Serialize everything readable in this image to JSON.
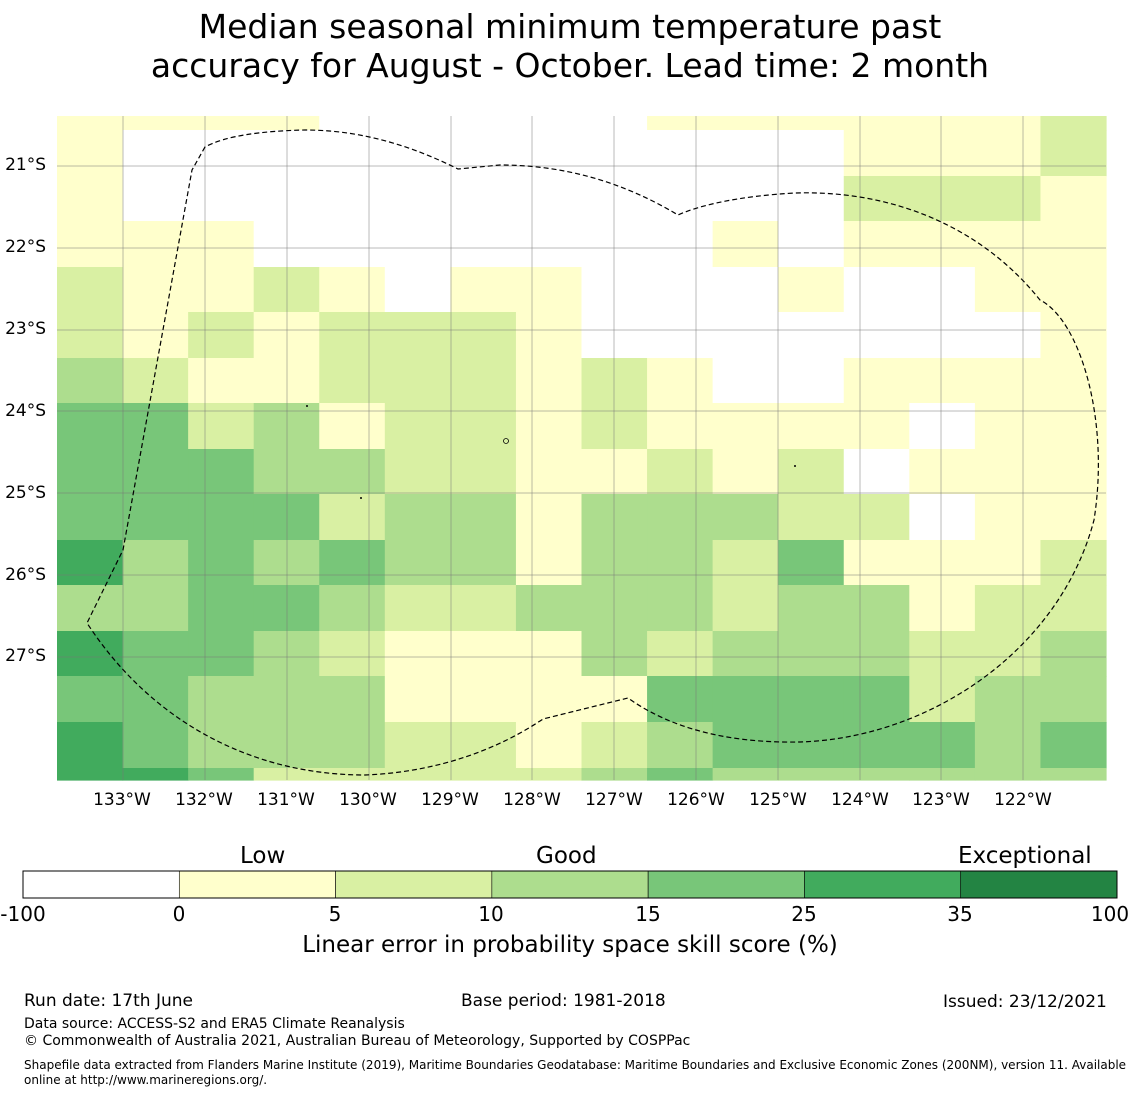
{
  "title_line1": "Median seasonal minimum temperature past",
  "title_line2": "accuracy for August - October. Lead time: 2 month",
  "map": {
    "lat_labels": [
      "21°S",
      "22°S",
      "23°S",
      "24°S",
      "25°S",
      "26°S",
      "27°S"
    ],
    "lon_labels": [
      "133°W",
      "132°W",
      "131°W",
      "130°W",
      "129°W",
      "128°W",
      "127°W",
      "126°W",
      "125°W",
      "124°W",
      "123°W",
      "122°W"
    ],
    "grid_colors_by_class": [
      "#ffffff",
      "#ffffcc",
      "#d9f0a3",
      "#addd8e",
      "#78c679",
      "#41ab5d",
      "#238443"
    ],
    "skill_class_grid": [
      [
        1,
        1,
        1,
        1,
        0,
        0,
        0,
        0,
        0,
        1,
        1,
        1,
        1,
        1,
        1,
        2
      ],
      [
        1,
        0,
        0,
        0,
        0,
        0,
        0,
        0,
        0,
        0,
        0,
        0,
        1,
        1,
        1,
        2
      ],
      [
        1,
        0,
        0,
        0,
        0,
        0,
        0,
        0,
        0,
        0,
        0,
        0,
        2,
        2,
        2,
        1
      ],
      [
        1,
        1,
        1,
        0,
        0,
        0,
        0,
        0,
        0,
        0,
        1,
        0,
        1,
        1,
        1,
        1
      ],
      [
        2,
        1,
        1,
        2,
        1,
        0,
        1,
        1,
        0,
        0,
        0,
        1,
        0,
        0,
        1,
        1
      ],
      [
        2,
        1,
        2,
        1,
        2,
        2,
        2,
        1,
        0,
        0,
        0,
        0,
        0,
        0,
        0,
        1
      ],
      [
        3,
        2,
        1,
        1,
        2,
        2,
        2,
        1,
        2,
        1,
        0,
        0,
        1,
        1,
        1,
        1
      ],
      [
        4,
        4,
        2,
        3,
        1,
        2,
        2,
        1,
        2,
        1,
        1,
        1,
        1,
        0,
        1,
        1
      ],
      [
        4,
        4,
        4,
        3,
        3,
        2,
        2,
        1,
        1,
        2,
        1,
        2,
        0,
        1,
        1,
        1
      ],
      [
        4,
        4,
        4,
        4,
        2,
        3,
        3,
        1,
        3,
        3,
        3,
        2,
        2,
        0,
        1,
        1
      ],
      [
        5,
        3,
        4,
        3,
        4,
        3,
        3,
        1,
        3,
        3,
        2,
        4,
        1,
        1,
        1,
        2
      ],
      [
        3,
        3,
        4,
        4,
        3,
        2,
        2,
        3,
        3,
        3,
        2,
        3,
        3,
        1,
        2,
        2
      ],
      [
        5,
        4,
        4,
        3,
        2,
        1,
        1,
        1,
        3,
        2,
        3,
        3,
        3,
        2,
        2,
        3
      ],
      [
        4,
        4,
        3,
        3,
        3,
        1,
        1,
        1,
        1,
        4,
        4,
        4,
        4,
        2,
        3,
        3
      ],
      [
        5,
        4,
        3,
        3,
        3,
        2,
        2,
        1,
        2,
        3,
        4,
        4,
        4,
        4,
        3,
        4
      ],
      [
        5,
        5,
        4,
        2,
        2,
        2,
        2,
        2,
        3,
        4,
        3,
        3,
        3,
        3,
        3,
        3
      ]
    ],
    "dot_marker_count": 4
  },
  "colorbar": {
    "categories": [
      "Low",
      "Good",
      "Exceptional"
    ],
    "ticks": [
      "-100",
      "0",
      "5",
      "10",
      "15",
      "25",
      "35",
      "100"
    ],
    "colors": [
      "#ffffff",
      "#ffffcc",
      "#d9f0a3",
      "#addd8e",
      "#78c679",
      "#41ab5d",
      "#238443"
    ],
    "label": "Linear error in probability space skill score (%)"
  },
  "footer": {
    "run_date": "Run date: 17th June",
    "base_period": "Base period: 1981-2018",
    "issued": "Issued: 23/12/2021",
    "data_source": "Data source: ACCESS-S2 and ERA5 Climate Reanalysis",
    "copyright": "© Commonwealth of Australia 2021, Australian Bureau of Meteorology, Supported by COSPPac",
    "shapefile": "Shapefile data extracted from Flanders Marine Institute (2019), Maritime Boundaries Geodatabase: Maritime Boundaries and Exclusive Economic Zones (200NM), version 11. Available online at http://www.marineregions.org/."
  }
}
